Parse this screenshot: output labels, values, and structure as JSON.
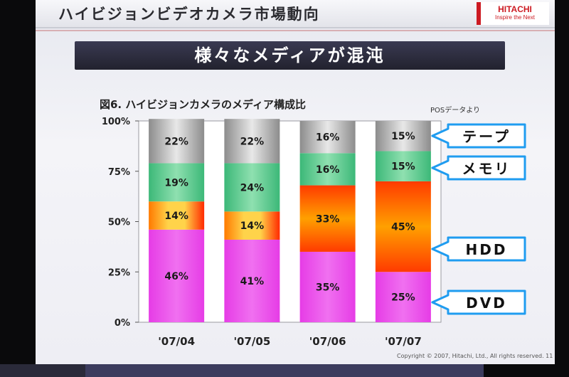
{
  "header": {
    "title": "ハイビジョンビデオカメラ市場動向",
    "logo_line1": "HITACHI",
    "logo_line2": "Inspire the Next"
  },
  "banner": "様々なメディアが混沌",
  "figure": {
    "title": "図6. ハイビジョンカメラのメディア構成比",
    "source": "POSデータより"
  },
  "footer": "Copyright © 2007, Hitachi, Ltd., All rights reserved. 11",
  "colors": {
    "dvd": "#e63ce6",
    "hdd_core": "#ff2a00",
    "hdd_edge": "#ffd34a",
    "memory": "#3cb878",
    "tape": "#a0a0a0",
    "callout_border": "#1f9cf0"
  },
  "chart_data": {
    "type": "bar",
    "stacked": true,
    "categories": [
      "'07/04",
      "'07/05",
      "'07/06",
      "'07/07"
    ],
    "ylim": [
      0,
      100
    ],
    "yticks": [
      "0%",
      "25%",
      "50%",
      "75%",
      "100%"
    ],
    "series": [
      {
        "name": "DVD",
        "key": "dvd",
        "values": [
          46,
          41,
          35,
          25
        ],
        "labels": [
          "46%",
          "41%",
          "35%",
          "25%"
        ]
      },
      {
        "name": "HDD",
        "key": "hdd",
        "values": [
          14,
          14,
          33,
          45
        ],
        "labels": [
          "14%",
          "14%",
          "33%",
          "45%"
        ]
      },
      {
        "name": "メモリ",
        "key": "memory",
        "values": [
          19,
          24,
          16,
          15
        ],
        "labels": [
          "19%",
          "24%",
          "16%",
          "15%"
        ]
      },
      {
        "name": "テープ",
        "key": "tape",
        "values": [
          22,
          22,
          16,
          15
        ],
        "labels": [
          "22%",
          "22%",
          "16%",
          "15%"
        ]
      }
    ]
  }
}
